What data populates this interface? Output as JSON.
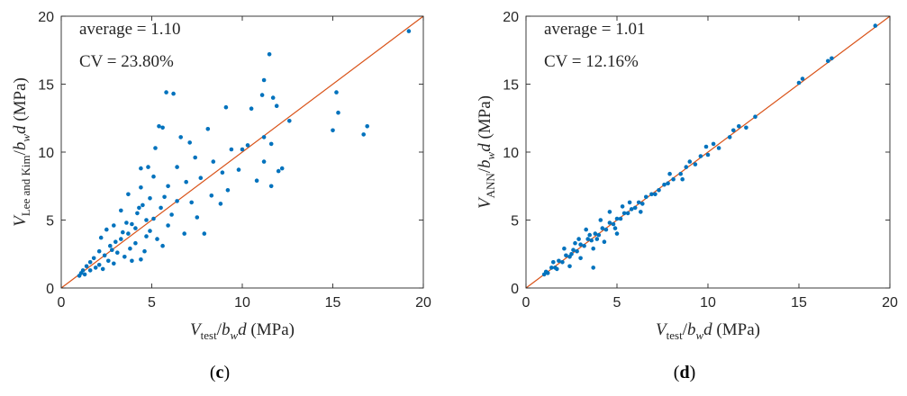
{
  "chart_data": [
    {
      "type": "scatter",
      "id": "c",
      "panel_label": {
        "open": "(",
        "letter": "c",
        "close": ")"
      },
      "annotations": [
        "average = 1.10",
        "CV = 23.80%"
      ],
      "xlabel": {
        "var": "V",
        "sub": "test",
        "rest": "/",
        "bvar": "b",
        "bsub": "w",
        "dvar": "d",
        "unit": " (MPa)"
      },
      "ylabel": {
        "var": "V",
        "sub": "Lee and Kim",
        "rest": "/",
        "bvar": "b",
        "bsub": "w",
        "dvar": "d",
        "unit": " (MPa)"
      },
      "xlim": [
        0,
        20
      ],
      "ylim": [
        0,
        20
      ],
      "xticks": [
        0,
        5,
        10,
        15,
        20
      ],
      "yticks": [
        0,
        5,
        10,
        15,
        20
      ],
      "reference_line": {
        "x": [
          0,
          20
        ],
        "y": [
          0,
          20
        ],
        "color": "#d95319"
      },
      "marker_color": "#0072bd",
      "points": [
        [
          19.2,
          18.9
        ],
        [
          11.5,
          17.2
        ],
        [
          11.2,
          15.3
        ],
        [
          5.8,
          14.4
        ],
        [
          6.2,
          14.3
        ],
        [
          15.2,
          14.4
        ],
        [
          11.1,
          14.2
        ],
        [
          11.7,
          14.0
        ],
        [
          9.1,
          13.3
        ],
        [
          10.5,
          13.2
        ],
        [
          11.9,
          13.4
        ],
        [
          15.3,
          12.9
        ],
        [
          12.6,
          12.3
        ],
        [
          16.9,
          11.9
        ],
        [
          5.4,
          11.9
        ],
        [
          5.6,
          11.8
        ],
        [
          8.1,
          11.7
        ],
        [
          15.0,
          11.6
        ],
        [
          16.7,
          11.3
        ],
        [
          11.2,
          11.1
        ],
        [
          6.6,
          11.1
        ],
        [
          7.1,
          10.7
        ],
        [
          10.3,
          10.5
        ],
        [
          11.6,
          10.6
        ],
        [
          5.2,
          10.3
        ],
        [
          9.4,
          10.2
        ],
        [
          10.0,
          10.2
        ],
        [
          11.2,
          9.3
        ],
        [
          7.4,
          9.6
        ],
        [
          8.4,
          9.3
        ],
        [
          4.4,
          8.8
        ],
        [
          4.8,
          8.9
        ],
        [
          6.4,
          8.9
        ],
        [
          9.8,
          8.7
        ],
        [
          12.2,
          8.8
        ],
        [
          12.0,
          8.6
        ],
        [
          8.9,
          8.5
        ],
        [
          5.1,
          8.2
        ],
        [
          7.7,
          8.1
        ],
        [
          10.8,
          7.9
        ],
        [
          6.9,
          7.8
        ],
        [
          11.6,
          7.5
        ],
        [
          4.4,
          7.4
        ],
        [
          5.9,
          7.5
        ],
        [
          9.2,
          7.2
        ],
        [
          8.3,
          6.8
        ],
        [
          3.7,
          6.9
        ],
        [
          4.9,
          6.6
        ],
        [
          6.4,
          6.4
        ],
        [
          7.2,
          6.3
        ],
        [
          8.8,
          6.2
        ],
        [
          5.5,
          5.9
        ],
        [
          3.3,
          5.7
        ],
        [
          4.2,
          5.5
        ],
        [
          6.1,
          5.4
        ],
        [
          7.5,
          5.2
        ],
        [
          4.7,
          5.0
        ],
        [
          3.6,
          4.8
        ],
        [
          5.9,
          4.6
        ],
        [
          2.9,
          4.6
        ],
        [
          2.5,
          4.3
        ],
        [
          4.1,
          4.4
        ],
        [
          6.8,
          4.0
        ],
        [
          7.9,
          4.0
        ],
        [
          3.4,
          4.1
        ],
        [
          4.7,
          3.8
        ],
        [
          5.3,
          3.6
        ],
        [
          2.2,
          3.7
        ],
        [
          3.0,
          3.4
        ],
        [
          4.1,
          3.3
        ],
        [
          5.6,
          3.1
        ],
        [
          2.7,
          3.1
        ],
        [
          3.8,
          2.9
        ],
        [
          4.6,
          2.7
        ],
        [
          2.1,
          2.7
        ],
        [
          3.1,
          2.6
        ],
        [
          2.4,
          2.4
        ],
        [
          3.5,
          2.3
        ],
        [
          4.4,
          2.1
        ],
        [
          1.8,
          2.2
        ],
        [
          2.6,
          2.0
        ],
        [
          1.6,
          1.9
        ],
        [
          2.9,
          1.8
        ],
        [
          2.1,
          1.7
        ],
        [
          1.4,
          1.6
        ],
        [
          1.9,
          1.5
        ],
        [
          1.2,
          1.3
        ],
        [
          1.6,
          1.3
        ],
        [
          1.1,
          1.1
        ],
        [
          1.3,
          1.0
        ],
        [
          1.0,
          0.9
        ],
        [
          2.3,
          1.4
        ],
        [
          3.9,
          2.0
        ],
        [
          3.3,
          3.6
        ],
        [
          4.9,
          4.2
        ],
        [
          5.1,
          5.1
        ],
        [
          3.7,
          4.0
        ],
        [
          2.8,
          2.8
        ],
        [
          4.3,
          5.9
        ],
        [
          3.9,
          4.7
        ],
        [
          4.5,
          6.1
        ],
        [
          5.7,
          6.7
        ]
      ]
    },
    {
      "type": "scatter",
      "id": "d",
      "panel_label": {
        "open": "(",
        "letter": "d",
        "close": ")"
      },
      "annotations": [
        "average = 1.01",
        "CV = 12.16%"
      ],
      "xlabel": {
        "var": "V",
        "sub": "test",
        "rest": "/",
        "bvar": "b",
        "bsub": "w",
        "dvar": "d",
        "unit": " (MPa)"
      },
      "ylabel": {
        "var": "V",
        "sub": "ANN",
        "rest": "/",
        "bvar": "b",
        "bsub": "w",
        "dvar": "d",
        "unit": " (MPa)"
      },
      "xlim": [
        0,
        20
      ],
      "ylim": [
        0,
        20
      ],
      "xticks": [
        0,
        5,
        10,
        15,
        20
      ],
      "yticks": [
        0,
        5,
        10,
        15,
        20
      ],
      "reference_line": {
        "x": [
          0,
          20
        ],
        "y": [
          0,
          20
        ],
        "color": "#d95319"
      },
      "marker_color": "#0072bd",
      "points": [
        [
          19.2,
          19.3
        ],
        [
          16.8,
          16.9
        ],
        [
          16.6,
          16.7
        ],
        [
          15.2,
          15.4
        ],
        [
          15.0,
          15.1
        ],
        [
          12.6,
          12.6
        ],
        [
          12.1,
          11.8
        ],
        [
          11.7,
          11.9
        ],
        [
          11.4,
          11.6
        ],
        [
          11.2,
          11.1
        ],
        [
          10.6,
          10.3
        ],
        [
          10.3,
          10.6
        ],
        [
          10.0,
          9.8
        ],
        [
          9.6,
          9.7
        ],
        [
          9.3,
          9.1
        ],
        [
          9.0,
          9.3
        ],
        [
          8.8,
          8.9
        ],
        [
          8.5,
          8.4
        ],
        [
          8.1,
          8.0
        ],
        [
          7.8,
          7.7
        ],
        [
          7.6,
          7.6
        ],
        [
          7.3,
          7.2
        ],
        [
          7.1,
          6.9
        ],
        [
          6.9,
          6.9
        ],
        [
          6.6,
          6.7
        ],
        [
          6.4,
          6.2
        ],
        [
          6.2,
          6.3
        ],
        [
          6.0,
          5.9
        ],
        [
          5.8,
          5.8
        ],
        [
          5.6,
          5.5
        ],
        [
          5.4,
          5.5
        ],
        [
          5.2,
          5.1
        ],
        [
          5.0,
          5.1
        ],
        [
          4.8,
          4.7
        ],
        [
          4.6,
          4.8
        ],
        [
          4.4,
          4.3
        ],
        [
          4.2,
          4.4
        ],
        [
          4.0,
          3.9
        ],
        [
          3.8,
          4.0
        ],
        [
          3.6,
          3.5
        ],
        [
          3.4,
          3.6
        ],
        [
          3.2,
          3.1
        ],
        [
          3.0,
          3.2
        ],
        [
          2.8,
          2.7
        ],
        [
          2.6,
          2.8
        ],
        [
          2.4,
          2.3
        ],
        [
          2.2,
          2.4
        ],
        [
          2.0,
          1.9
        ],
        [
          1.8,
          2.0
        ],
        [
          1.6,
          1.5
        ],
        [
          1.4,
          1.5
        ],
        [
          1.2,
          1.1
        ],
        [
          1.1,
          1.2
        ],
        [
          1.0,
          1.0
        ],
        [
          2.1,
          2.9
        ],
        [
          2.7,
          3.3
        ],
        [
          3.3,
          4.3
        ],
        [
          4.1,
          5.0
        ],
        [
          4.6,
          5.6
        ],
        [
          5.3,
          6.0
        ],
        [
          2.4,
          1.6
        ],
        [
          3.0,
          2.2
        ],
        [
          3.7,
          2.9
        ],
        [
          4.3,
          3.4
        ],
        [
          5.0,
          4.0
        ],
        [
          3.7,
          1.5
        ],
        [
          7.9,
          8.4
        ],
        [
          9.9,
          10.4
        ],
        [
          8.6,
          8.0
        ],
        [
          6.3,
          5.6
        ],
        [
          5.7,
          6.3
        ],
        [
          4.9,
          4.4
        ],
        [
          2.9,
          3.6
        ],
        [
          3.5,
          3.9
        ],
        [
          1.7,
          1.4
        ],
        [
          1.5,
          1.9
        ],
        [
          2.5,
          2.5
        ],
        [
          3.9,
          3.6
        ]
      ]
    }
  ]
}
